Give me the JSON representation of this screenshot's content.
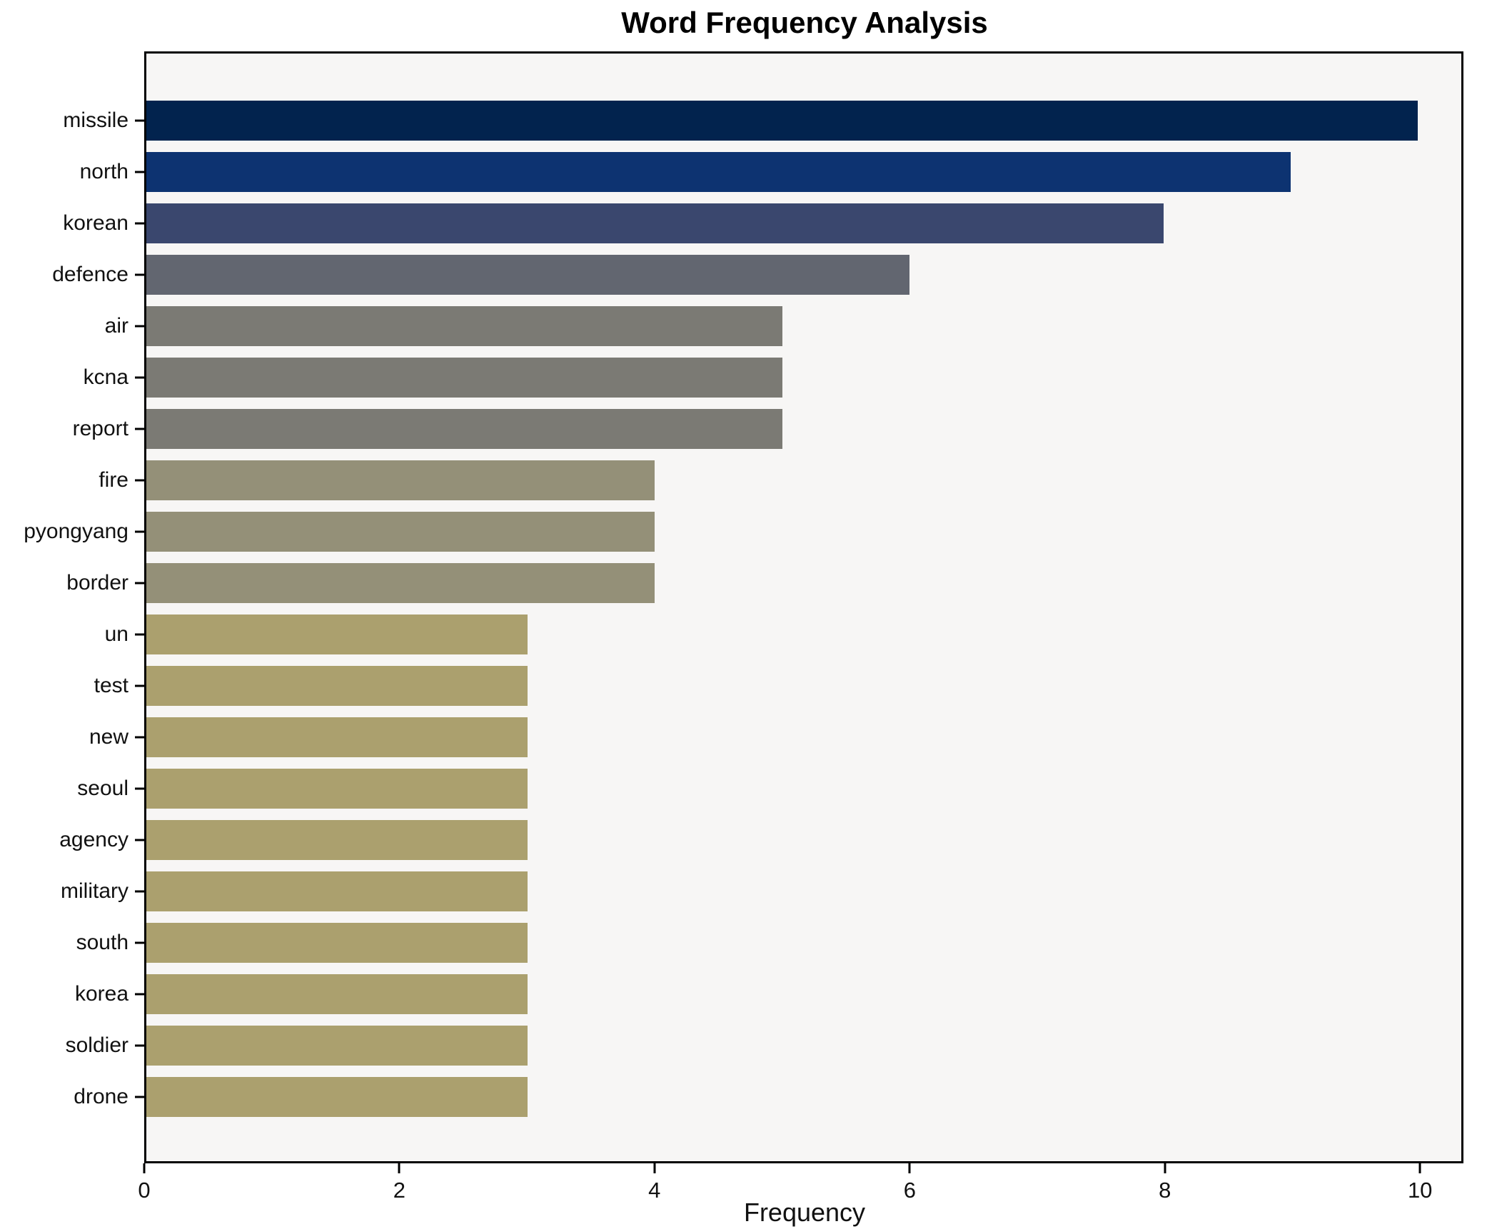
{
  "chart_data": {
    "type": "bar",
    "orientation": "horizontal",
    "title": "Word Frequency Analysis",
    "xlabel": "Frequency",
    "ylabel": "",
    "xlim": [
      0,
      10.34
    ],
    "x_ticks": [
      0,
      2,
      4,
      6,
      8,
      10
    ],
    "grid": false,
    "legend": "none",
    "plot_background": "#f7f6f5",
    "figure_background": "#ffffff",
    "categories": [
      "missile",
      "north",
      "korean",
      "defence",
      "air",
      "kcna",
      "report",
      "fire",
      "pyongyang",
      "border",
      "un",
      "test",
      "new",
      "seoul",
      "agency",
      "military",
      "south",
      "korea",
      "soldier",
      "drone"
    ],
    "values": [
      10,
      9,
      8,
      6,
      5,
      5,
      5,
      4,
      4,
      4,
      3,
      3,
      3,
      3,
      3,
      3,
      3,
      3,
      3,
      3
    ],
    "bar_colors": [
      "#02234e",
      "#0d3371",
      "#3a476e",
      "#626670",
      "#7b7a74",
      "#7b7a74",
      "#7b7a74",
      "#949078",
      "#949078",
      "#949078",
      "#aba06e",
      "#aba06e",
      "#aba06e",
      "#aba06e",
      "#aba06e",
      "#aba06e",
      "#aba06e",
      "#aba06e",
      "#aba06e",
      "#aba06e"
    ]
  }
}
